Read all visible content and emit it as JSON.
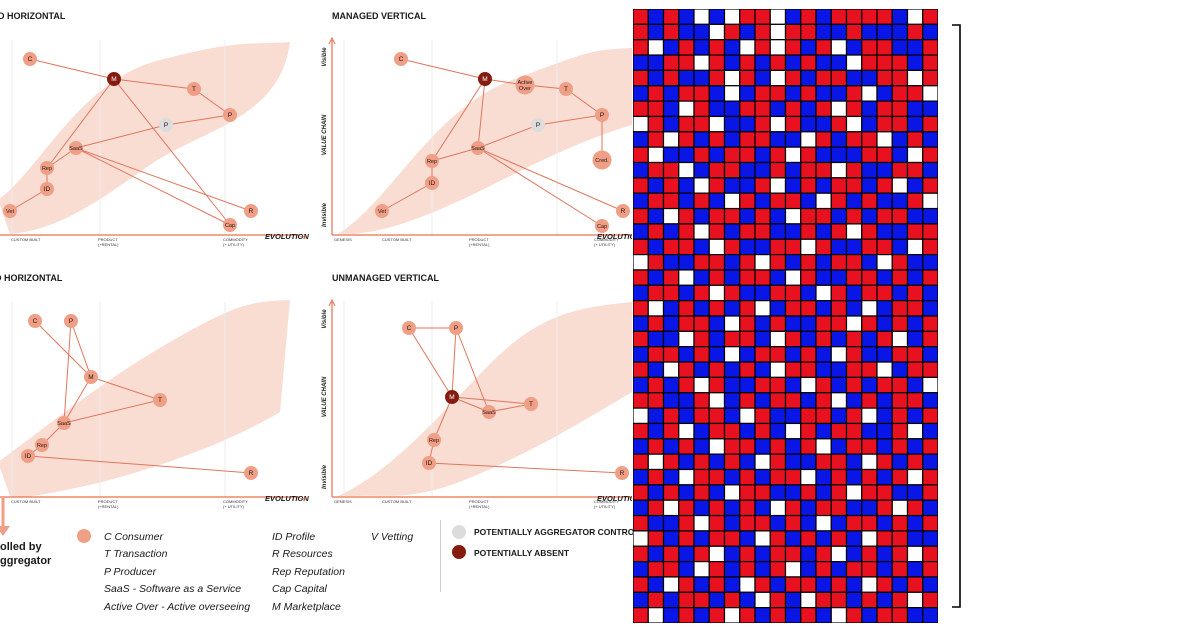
{
  "colors": {
    "band": "#f9ddd3",
    "node": "#ef9f86",
    "node_light": "#dcdcdc",
    "node_dark": "#861c10",
    "axis": "#e6704e",
    "line": "#e1755c",
    "grid_red": "#e8111f",
    "grid_blue": "#0a16e6",
    "grid_white": "#ffffff",
    "grid_border": "#000000"
  },
  "axes": {
    "visible": "Visible",
    "invisible": "Invisible",
    "value_chain": "VALUE CHAIN",
    "evolution": "EVOLUTION",
    "arrow": "→",
    "genesis": "GENESIS",
    "custom_built": "CUSTOM BUILT",
    "product": "PRODUCT",
    "product_sub": "(+RENTAL)",
    "commodity": "COMMODITY",
    "commodity_sub": "(+ UTILITY)"
  },
  "maps": [
    {
      "title": "D HORIZONTAL",
      "nodes": [
        {
          "id": "C",
          "label": "C",
          "type": "normal"
        },
        {
          "id": "M",
          "label": "M",
          "type": "dark"
        },
        {
          "id": "T",
          "label": "T",
          "type": "normal"
        },
        {
          "id": "P",
          "label": "P",
          "type": "normal"
        },
        {
          "id": "Pa",
          "label": "P",
          "type": "light"
        },
        {
          "id": "SaaS",
          "label": "SaaS",
          "type": "normal"
        },
        {
          "id": "Rep",
          "label": "Rep",
          "type": "normal"
        },
        {
          "id": "ID",
          "label": "ID",
          "type": "normal"
        },
        {
          "id": "Vet",
          "label": "Vet",
          "type": "normal"
        },
        {
          "id": "Cap",
          "label": "Cap",
          "type": "normal"
        },
        {
          "id": "R",
          "label": "R",
          "type": "normal"
        }
      ],
      "edges": [
        [
          "C",
          "M"
        ],
        [
          "M",
          "T"
        ],
        [
          "T",
          "P"
        ],
        [
          "P",
          "Pa"
        ],
        [
          "Pa",
          "SaaS"
        ],
        [
          "M",
          "Rep"
        ],
        [
          "SaaS",
          "Rep"
        ],
        [
          "SaaS",
          "Cap"
        ],
        [
          "SaaS",
          "R"
        ],
        [
          "Rep",
          "ID"
        ],
        [
          "ID",
          "Vet"
        ],
        [
          "M",
          "Cap"
        ]
      ]
    },
    {
      "title": "MANAGED VERTICAL",
      "nodes": [
        {
          "id": "C",
          "label": "C",
          "type": "normal"
        },
        {
          "id": "M",
          "label": "M",
          "type": "dark"
        },
        {
          "id": "AO",
          "label": "Active Over",
          "type": "normal"
        },
        {
          "id": "T",
          "label": "T",
          "type": "normal"
        },
        {
          "id": "P",
          "label": "P",
          "type": "normal"
        },
        {
          "id": "Pa",
          "label": "P",
          "type": "light"
        },
        {
          "id": "SaaS",
          "label": "SaaS",
          "type": "normal"
        },
        {
          "id": "Rep",
          "label": "Rep",
          "type": "normal"
        },
        {
          "id": "Cred",
          "label": "Cred.",
          "type": "normal"
        },
        {
          "id": "ID",
          "label": "ID",
          "type": "normal"
        },
        {
          "id": "Vet",
          "label": "Vet",
          "type": "normal"
        },
        {
          "id": "Cap",
          "label": "Cap",
          "type": "normal"
        },
        {
          "id": "R",
          "label": "R",
          "type": "normal"
        }
      ],
      "edges": [
        [
          "C",
          "M"
        ],
        [
          "M",
          "AO"
        ],
        [
          "AO",
          "T"
        ],
        [
          "T",
          "P"
        ],
        [
          "P",
          "Cred"
        ],
        [
          "P",
          "Pa"
        ],
        [
          "Pa",
          "SaaS"
        ],
        [
          "M",
          "Rep"
        ],
        [
          "SaaS",
          "Rep"
        ],
        [
          "SaaS",
          "Cap"
        ],
        [
          "SaaS",
          "R"
        ],
        [
          "Rep",
          "ID"
        ],
        [
          "ID",
          "Vet"
        ],
        [
          "M",
          "SaaS"
        ]
      ]
    },
    {
      "title": "GED HORIZONTAL",
      "nodes": [
        {
          "id": "C",
          "label": "C",
          "type": "normal"
        },
        {
          "id": "P",
          "label": "P",
          "type": "normal"
        },
        {
          "id": "M",
          "label": "M",
          "type": "normal"
        },
        {
          "id": "T",
          "label": "T",
          "type": "normal"
        },
        {
          "id": "SaaS",
          "label": "SaaS",
          "type": "normal"
        },
        {
          "id": "Rep",
          "label": "Rep",
          "type": "normal"
        },
        {
          "id": "ID",
          "label": "ID",
          "type": "normal"
        },
        {
          "id": "R",
          "label": "R",
          "type": "normal"
        }
      ],
      "edges": [
        [
          "C",
          "M"
        ],
        [
          "P",
          "M"
        ],
        [
          "P",
          "SaaS"
        ],
        [
          "M",
          "T"
        ],
        [
          "M",
          "SaaS"
        ],
        [
          "T",
          "SaaS"
        ],
        [
          "SaaS",
          "Rep"
        ],
        [
          "Rep",
          "ID"
        ],
        [
          "ID",
          "R"
        ]
      ]
    },
    {
      "title": "UNMANAGED VERTICAL",
      "nodes": [
        {
          "id": "C",
          "label": "C",
          "type": "normal"
        },
        {
          "id": "P",
          "label": "P",
          "type": "normal"
        },
        {
          "id": "M",
          "label": "M",
          "type": "dark"
        },
        {
          "id": "SaaS",
          "label": "SaaS",
          "type": "normal"
        },
        {
          "id": "T",
          "label": "T",
          "type": "normal"
        },
        {
          "id": "Rep",
          "label": "Rep",
          "type": "normal"
        },
        {
          "id": "ID",
          "label": "ID",
          "type": "normal"
        },
        {
          "id": "R",
          "label": "R",
          "type": "normal"
        }
      ],
      "edges": [
        [
          "C",
          "P"
        ],
        [
          "C",
          "M"
        ],
        [
          "P",
          "M"
        ],
        [
          "P",
          "SaaS"
        ],
        [
          "M",
          "SaaS"
        ],
        [
          "M",
          "T"
        ],
        [
          "SaaS",
          "T"
        ],
        [
          "M",
          "Rep"
        ],
        [
          "Rep",
          "ID"
        ],
        [
          "ID",
          "R"
        ]
      ]
    }
  ],
  "controlled_note": [
    "olled by",
    "ggregator"
  ],
  "legend": {
    "col1": [
      "C Consumer",
      "T Transaction",
      "P Producer",
      "SaaS - Software as a Service",
      "Active Over - Active overseeing"
    ],
    "col2": [
      "ID Profile",
      "R Resources",
      "Rep Reputation",
      "Cap Capital",
      "M Marketplace"
    ],
    "col3": [
      "V Vetting"
    ],
    "aggregator": "POTENTIALLY AGGREGATOR CONTROLL",
    "absent": "POTENTIALLY ABSENT"
  },
  "grid": {
    "cols": 20,
    "rows": 40,
    "cells": [
      "RBRBWBWRRWBRBRRRRBWR",
      "RBRBBWRBRWRRBBRBBBRB",
      "RWBRBRBWRWRBRWBRRBBR",
      "BBRRWRBRBRBRBBWRRRBR",
      "RBRBBRWRBWRBRRBBRRWR",
      "BRBRRBWBRRBRBBRWBRRW",
      "RRBWRBBRRBRBRWRBRRBB",
      "WRBRRWBBRWRBBRWBRRBR",
      "BRWRBRBRRBBWRBRRWBRB",
      "RWBBRBRRBRWRBBBRRBWR",
      "BRRWBRRBBRBRRWRBBRRB",
      "RBRBWRBBRWBRBRRBRWBR",
      "BRRBRBWRBRRBWRBRBBRW",
      "RBWRBRRBRBWRRBRBRRBB",
      "BRBRWRBRRBBRBRWRBBRR",
      "RBRRBWRBBRRWRBBRRBWR",
      "WRBBRRBRWRBRBRRBWRBB",
      "RBRWBRBRRBWRBBRRBRBR",
      "BRRBRWRBBRRBWRBRRBRB",
      "RWBRBRBRWBRRBRBWBRRB",
      "BRBRRBWRBRBBRRWRBRBR",
      "RBBWRBRRBWRBRBRBRWBR",
      "BRRBRBWBRRBRBWRBBRRB",
      "RBWRBRBRBWRRBBRRWBRR",
      "BRBRWRBBRRBWRBRBRRBW",
      "RRBBRWBRBRRBRWBRBRRB",
      "WBRBRRBWRBBRRBRWBRBR",
      "RBRWBRRBRBWRBRRBBRWB",
      "BRBRBWRRBRBRWBRRBRBR",
      "RWRBRBRBWRBBRRBWRBRB",
      "BRBWRRBRBRRWBRBRBRWR",
      "RBRBRBWRRBBRBRWRRBBR",
      "BRWRBRBRBWRBRRBBRWRB",
      "RBBRWRBRRBRBWBRRBRBR",
      "WRBRBRRBWRBRBRBWRRBB",
      "RBRBRWBRBRRBRWBRBRWR",
      "BRRBWRBRBRWBRBRRBRBR",
      "RBWRBRBWRBRRBRBWRBRB",
      "BRBRRBRBWRBWRRBRBRWR",
      "RWBRBRWRBRBRBWRBRRBB"
    ]
  }
}
